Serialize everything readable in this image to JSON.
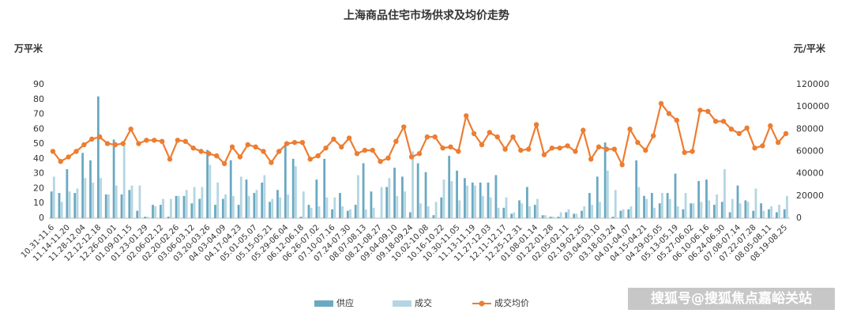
{
  "chart_data": {
    "type": "bar-line",
    "title": "上海商品住宅市场供求及均价走势",
    "y_label": "万平米",
    "y2_label": "元/平米",
    "watermark": "搜狐号@搜狐焦点嘉峪关站",
    "categories": [
      "10.31-11.6",
      null,
      "11.14-11.20",
      null,
      "11.28-12.04",
      null,
      "12.12-12.18",
      null,
      "12.26-01.01",
      null,
      "01.09-01.15",
      null,
      "01.23-01.29",
      null,
      "02.06-02.12",
      null,
      "02.20-02.26",
      null,
      "03.06-03.12",
      null,
      "03.20-03.26",
      null,
      "04.03-04.09",
      null,
      "04.17-04.23",
      null,
      "05.01-05.07",
      null,
      "05.15-05.21",
      null,
      "05.29-06.04",
      null,
      "06.12-06.18",
      null,
      "06.26-07.02",
      null,
      "07.10-07.16",
      null,
      "07.24-07.30",
      null,
      "08.07-08.13",
      null,
      "08.21-08.27",
      null,
      "09.04-09.10",
      null,
      "09.18-09.24",
      null,
      "10.02-10.08",
      null,
      "10.16-10.22",
      null,
      "10.30-11.05",
      null,
      "11.13-11.19",
      null,
      "11.27-12.03",
      null,
      "12.11-12.17",
      null,
      "12.25-12.31",
      null,
      "01.08-01.14",
      null,
      "01.22-01.28",
      null,
      "02.05-02.11",
      null,
      "02.19-02.25",
      null,
      "03.04-03.10",
      null,
      "03.18-03.24",
      null,
      "04.01-04.07",
      null,
      "04.15-04.21",
      null,
      "04.29-05.05",
      null,
      "05.13-05.19",
      null,
      "05.27-06.02",
      null,
      "06.10-06.16",
      null,
      "06.24-06.30",
      null,
      "07.08-07.14",
      null,
      "07.22-07.28",
      null,
      "08.05-08.11",
      null,
      "08.19-08.25"
    ],
    "series": [
      {
        "name": "供应",
        "color": "#6aa9c2",
        "kind": "bar",
        "values": [
          18,
          17,
          33,
          17,
          44,
          39,
          82,
          16,
          53,
          16,
          19,
          5,
          1,
          9,
          9,
          1,
          15,
          15,
          10,
          13,
          46,
          9,
          13,
          39,
          9,
          26,
          17,
          24,
          11,
          19,
          51,
          40,
          1,
          9,
          26,
          40,
          6,
          17,
          5,
          9,
          37,
          18,
          0,
          21,
          34,
          28,
          4,
          37,
          31,
          2,
          14,
          42,
          32,
          27,
          24,
          24,
          24,
          29,
          7,
          3,
          12,
          21,
          9,
          2,
          1,
          1,
          4,
          3,
          5,
          17,
          28,
          51,
          1,
          5,
          6,
          39,
          15,
          17,
          10,
          17,
          30,
          6,
          10,
          25,
          26,
          9,
          11,
          4,
          22,
          12,
          5,
          10,
          6,
          4,
          6
        ]
      },
      {
        "name": "成交",
        "color": "#b3d6e2",
        "kind": "bar",
        "values": [
          28,
          11,
          18,
          20,
          27,
          24,
          27,
          16,
          22,
          49,
          22,
          22,
          1,
          8,
          13,
          13,
          15,
          19,
          21,
          21,
          36,
          24,
          16,
          15,
          28,
          15,
          19,
          29,
          13,
          14,
          16,
          35,
          18,
          7,
          8,
          14,
          14,
          8,
          6,
          29,
          6,
          7,
          21,
          27,
          15,
          18,
          45,
          10,
          8,
          11,
          26,
          25,
          12,
          22,
          22,
          15,
          14,
          7,
          14,
          4,
          10,
          8,
          13,
          2,
          1,
          4,
          6,
          3,
          8,
          9,
          11,
          32,
          19,
          6,
          8,
          21,
          13,
          7,
          17,
          13,
          8,
          17,
          10,
          11,
          12,
          16,
          33,
          13,
          10,
          11,
          20,
          5,
          8,
          9,
          15
        ]
      },
      {
        "name": "成交均价",
        "color": "#ed7d31",
        "kind": "line",
        "axis": "y2",
        "values": [
          60000,
          51000,
          55000,
          60000,
          66000,
          71000,
          73000,
          67000,
          66000,
          67000,
          80000,
          67000,
          70000,
          70000,
          69000,
          53000,
          70000,
          69000,
          63000,
          60000,
          58000,
          56000,
          49000,
          64000,
          55000,
          66000,
          64000,
          60000,
          50000,
          60000,
          67000,
          68000,
          68000,
          53000,
          56000,
          63000,
          71000,
          64000,
          72000,
          58000,
          61000,
          61000,
          51000,
          54000,
          69000,
          82000,
          55000,
          58000,
          73000,
          73000,
          63000,
          64000,
          60000,
          92000,
          76000,
          66000,
          77000,
          73000,
          62000,
          73000,
          61000,
          62000,
          84000,
          57000,
          63000,
          63000,
          65000,
          60000,
          79000,
          53000,
          64000,
          62000,
          62000,
          48000,
          80000,
          68000,
          61000,
          74000,
          103000,
          94000,
          88000,
          59000,
          60000,
          97000,
          96000,
          87000,
          87000,
          80000,
          76000,
          81000,
          63000,
          65000,
          83000,
          68000,
          76000
        ]
      }
    ],
    "ylim": [
      0,
      90
    ],
    "yticks": [
      0,
      10,
      20,
      30,
      40,
      50,
      60,
      70,
      80,
      90
    ],
    "y2lim": [
      0,
      120000
    ],
    "y2ticks": [
      0,
      20000,
      40000,
      60000,
      80000,
      100000,
      120000
    ]
  }
}
